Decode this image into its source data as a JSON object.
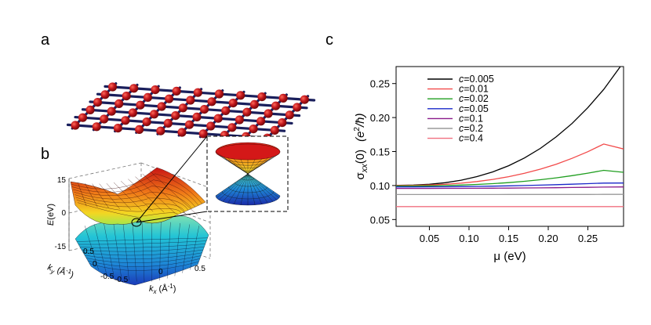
{
  "panels": {
    "a": {
      "label": "a"
    },
    "b": {
      "label": "b",
      "surface": {
        "z_label": "E",
        "z_unit": "(eV)",
        "z_ticks": [
          "15",
          "0",
          "-15"
        ],
        "ky_label": "k",
        "ky_sub": "y",
        "ky_unit": " (Å",
        "ky_exp": "-1",
        "ky_close": ")",
        "ky_ticks": [
          "0.5",
          "0",
          "-0.5"
        ],
        "kx_label": "k",
        "kx_sub": "x",
        "kx_unit": " (Å",
        "kx_exp": "-1",
        "kx_close": ")",
        "kx_ticks": [
          "-0.5",
          "0",
          "0.5"
        ]
      }
    },
    "c": {
      "label": "c"
    }
  },
  "colors": {
    "lattice_bond": "#1a1f5c",
    "lattice_atom": "#c0161b",
    "surface_top": "#e64a12",
    "surface_bottom": "#1e86d6"
  },
  "chart_data": {
    "type": "line",
    "title": "",
    "xlabel": "μ (eV)",
    "ylabel_main": "σ",
    "ylabel_sub": "xx",
    "ylabel_arg": "(0)",
    "ylabel_unit_open": "(e",
    "ylabel_unit_sup": "2",
    "ylabel_unit_close": "/ħ)",
    "xlim": [
      0.008,
      0.295
    ],
    "ylim": [
      0.04,
      0.275
    ],
    "xticks": [
      0.05,
      0.1,
      0.15,
      0.2,
      0.25
    ],
    "xtick_labels": [
      "0.05",
      "0.10",
      "0.15",
      "0.20",
      "0.25"
    ],
    "yticks": [
      0.05,
      0.1,
      0.15,
      0.2,
      0.25
    ],
    "ytick_labels": [
      "0.05",
      "0.10",
      "0.15",
      "0.20",
      "0.25"
    ],
    "grid": false,
    "legend_position": "top-left",
    "x": [
      0.008,
      0.03,
      0.05,
      0.07,
      0.09,
      0.11,
      0.13,
      0.15,
      0.17,
      0.19,
      0.21,
      0.23,
      0.25,
      0.27,
      0.295
    ],
    "series": [
      {
        "name": "c=0.005",
        "color": "#000000",
        "values": [
          0.1002,
          0.1007,
          0.1019,
          0.1042,
          0.1079,
          0.1131,
          0.1201,
          0.1292,
          0.1406,
          0.1546,
          0.1715,
          0.1913,
          0.2146,
          0.2414,
          0.2815
        ]
      },
      {
        "name": "c=0.01",
        "color": "#f24a4a",
        "values": [
          0.1,
          0.1002,
          0.1008,
          0.1019,
          0.1035,
          0.1059,
          0.109,
          0.113,
          0.118,
          0.1241,
          0.1314,
          0.14,
          0.1498,
          0.1611,
          0.1538
        ]
      },
      {
        "name": "c=0.02",
        "color": "#1f9e1f",
        "values": [
          0.0993,
          0.0994,
          0.0996,
          0.1,
          0.1007,
          0.1016,
          0.1028,
          0.1043,
          0.1062,
          0.1085,
          0.1113,
          0.1145,
          0.1182,
          0.1224,
          0.1195
        ]
      },
      {
        "name": "c=0.05",
        "color": "#1a27c9",
        "values": [
          0.098,
          0.098,
          0.0981,
          0.0982,
          0.0984,
          0.0987,
          0.0991,
          0.0995,
          0.1,
          0.1006,
          0.1013,
          0.102,
          0.1028,
          0.1036,
          0.1037
        ]
      },
      {
        "name": "c=0.1",
        "color": "#8a1a8a",
        "values": [
          0.0958,
          0.0958,
          0.0958,
          0.0959,
          0.0959,
          0.096,
          0.0961,
          0.0962,
          0.0964,
          0.0966,
          0.0968,
          0.0971,
          0.0974,
          0.0977,
          0.098
        ]
      },
      {
        "name": "c=0.2",
        "color": "#9a9a9a",
        "values": [
          0.0868,
          0.0868,
          0.0868,
          0.0868,
          0.0868,
          0.0868,
          0.0868,
          0.0869,
          0.0869,
          0.0869,
          0.0869,
          0.0869,
          0.0869,
          0.087,
          0.087
        ]
      },
      {
        "name": "c=0.4",
        "color": "#f07080",
        "values": [
          0.069,
          0.069,
          0.069,
          0.069,
          0.069,
          0.069,
          0.069,
          0.069,
          0.069,
          0.069,
          0.069,
          0.069,
          0.069,
          0.069,
          0.069
        ]
      }
    ]
  }
}
